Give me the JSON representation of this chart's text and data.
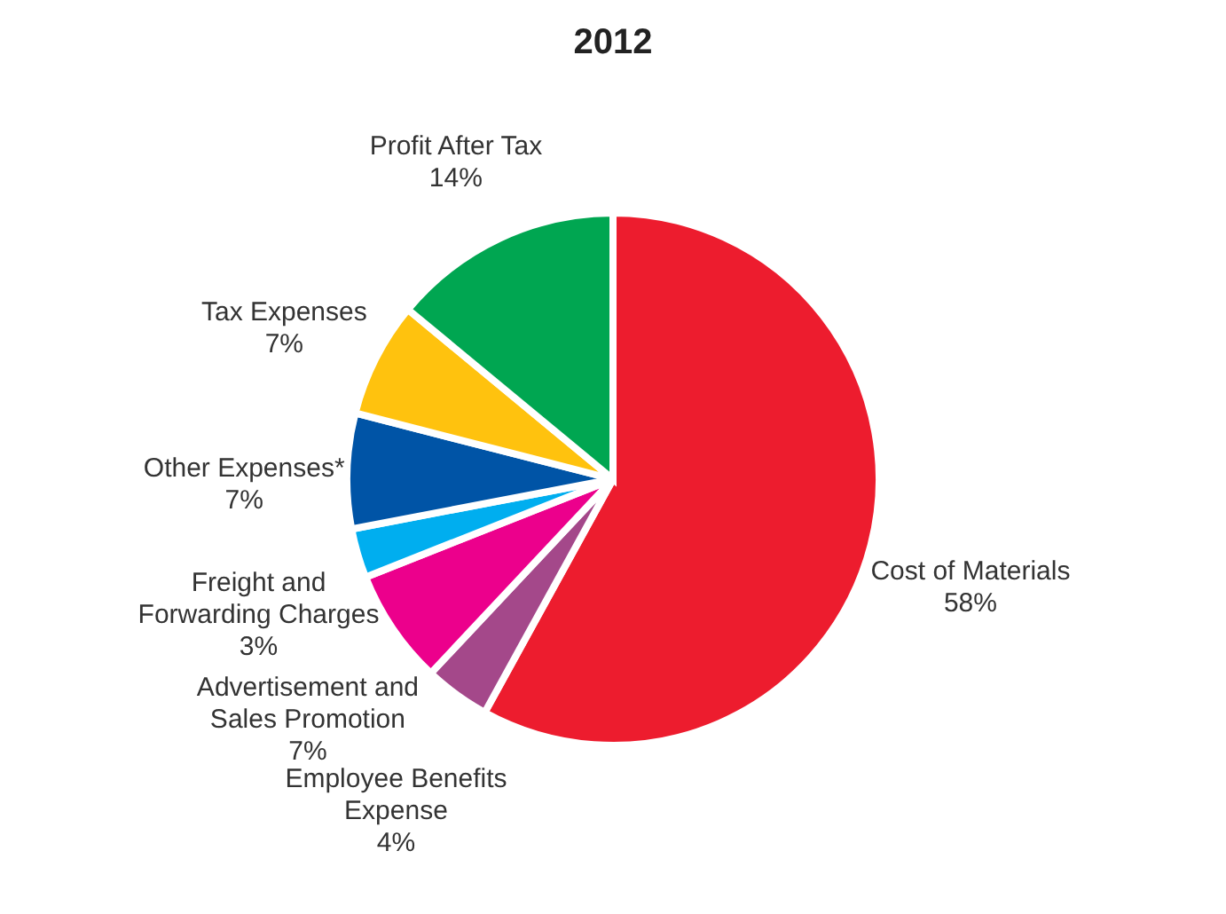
{
  "chart_data": {
    "type": "pie",
    "title": "2012",
    "categories": [
      "Cost of Materials",
      "Employee Benefits Expense",
      "Advertisement and Sales Promotion",
      "Freight and Forwarding Charges",
      "Other Expenses*",
      "Tax Expenses",
      "Profit After Tax"
    ],
    "values": [
      58,
      4,
      7,
      3,
      7,
      7,
      14
    ],
    "colors": [
      "#ed1c2e",
      "#a4488a",
      "#ec008c",
      "#00aeef",
      "#0054a6",
      "#ffc20e",
      "#00a651"
    ],
    "value_labels": [
      "58%",
      "4%",
      "7%",
      "3%",
      "7%",
      "7%",
      "14%"
    ],
    "legend": false
  }
}
